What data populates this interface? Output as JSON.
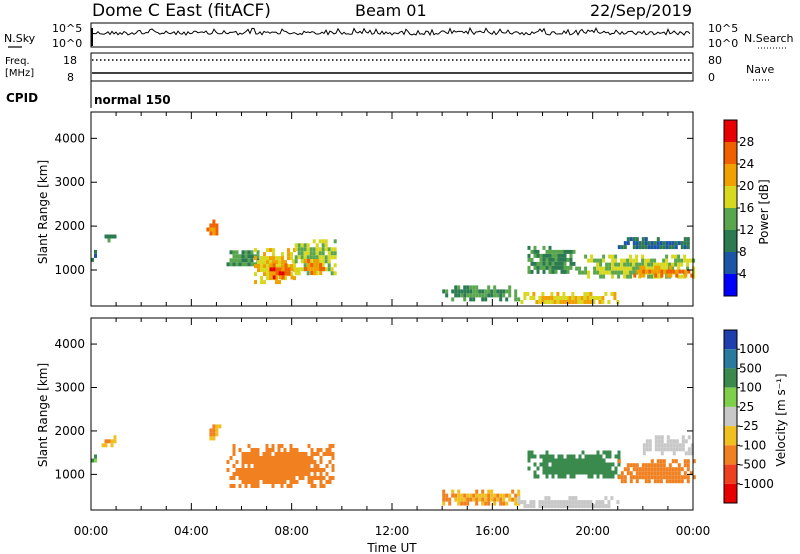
{
  "header": {
    "station": "Dome C East (fitACF)",
    "beam": "Beam 01",
    "date": "22/Sep/2019"
  },
  "strip_panels": {
    "nsky_label": "N.Sky",
    "nsearch_label": "N.Search",
    "noise_ticks": [
      "10^5",
      "10^0"
    ],
    "freq_label_line1": "Freq.",
    "freq_label_line2": "[MHz]",
    "freq_ticks": [
      "18",
      "8"
    ],
    "nave_label": "Nave",
    "nave_ticks": [
      "80",
      "0"
    ],
    "cpid_label": "CPID",
    "cpid_value": "normal 150"
  },
  "axes": {
    "ylabel": "Slant Range [km]",
    "xlabel": "Time UT",
    "y_ticks": [
      1000,
      2000,
      3000,
      4000
    ],
    "ylim": [
      180,
      4600
    ],
    "x_ticks": [
      "00:00",
      "04:00",
      "08:00",
      "12:00",
      "16:00",
      "20:00",
      "00:00"
    ],
    "xlim_hours": [
      0,
      24
    ]
  },
  "colorbars": {
    "power": {
      "label": "Power [dB]",
      "ticks": [
        "4",
        "8",
        "12",
        "16",
        "20",
        "24",
        "28"
      ],
      "colors": [
        "#0000ff",
        "#1a55a8",
        "#2c7a52",
        "#5aa64e",
        "#d8d820",
        "#f0a000",
        "#f06000",
        "#e80000"
      ]
    },
    "velocity": {
      "label": "Velocity [m s⁻¹]",
      "ticks": [
        "1000",
        "500",
        "100",
        "25",
        "-25",
        "-100",
        "-500",
        "-1000"
      ],
      "colors": [
        "#1f3fae",
        "#2a7aa0",
        "#3a8a4e",
        "#7ed04a",
        "#c8c8c8",
        "#f0c020",
        "#f08020",
        "#ee4020",
        "#e80000"
      ]
    }
  },
  "chart_data": [
    {
      "type": "heatmap",
      "title": "Power",
      "xlabel": "Time UT",
      "ylabel": "Slant Range [km]",
      "xlim": [
        0,
        24
      ],
      "ylim": [
        180,
        4600
      ],
      "colorbar_label": "Power [dB]",
      "regions": [
        {
          "t0": 0.0,
          "t1": 0.2,
          "r0": 1250,
          "r1": 1550,
          "value": 8
        },
        {
          "t0": 0.3,
          "t1": 1.0,
          "r0": 1700,
          "r1": 1900,
          "value": 12
        },
        {
          "t0": 4.6,
          "t1": 5.1,
          "r0": 1800,
          "r1": 2150,
          "value": 24
        },
        {
          "t0": 5.4,
          "t1": 6.6,
          "r0": 1100,
          "r1": 1450,
          "value": 12
        },
        {
          "t0": 6.5,
          "t1": 8.2,
          "r0": 750,
          "r1": 1500,
          "value": 20
        },
        {
          "t0": 7.0,
          "t1": 8.0,
          "r0": 850,
          "r1": 1150,
          "value": 26
        },
        {
          "t0": 8.0,
          "t1": 9.7,
          "r0": 900,
          "r1": 1700,
          "value": 16
        },
        {
          "t0": 8.5,
          "t1": 9.3,
          "r0": 950,
          "r1": 1250,
          "value": 24
        },
        {
          "t0": 14.0,
          "t1": 17.0,
          "r0": 350,
          "r1": 650,
          "value": 12
        },
        {
          "t0": 17.0,
          "t1": 21.0,
          "r0": 250,
          "r1": 500,
          "value": 20
        },
        {
          "t0": 17.4,
          "t1": 19.3,
          "r0": 950,
          "r1": 1550,
          "value": 12
        },
        {
          "t0": 19.3,
          "t1": 24.0,
          "r0": 850,
          "r1": 1350,
          "value": 16
        },
        {
          "t0": 21.5,
          "t1": 24.0,
          "r0": 900,
          "r1": 1100,
          "value": 24
        },
        {
          "t0": 21.0,
          "t1": 24.0,
          "r0": 1500,
          "r1": 1750,
          "value": 8
        }
      ]
    },
    {
      "type": "heatmap",
      "title": "Velocity",
      "xlabel": "Time UT",
      "ylabel": "Slant Range [km]",
      "xlim": [
        0,
        24
      ],
      "ylim": [
        180,
        4600
      ],
      "colorbar_label": "Velocity [m s⁻¹]",
      "regions": [
        {
          "t0": 0.0,
          "t1": 0.2,
          "r0": 1250,
          "r1": 1550,
          "value": 100
        },
        {
          "t0": 0.3,
          "t1": 1.0,
          "r0": 1700,
          "r1": 1900,
          "value": -100
        },
        {
          "t0": 4.6,
          "t1": 5.1,
          "r0": 1800,
          "r1": 2150,
          "value": -100
        },
        {
          "t0": 5.4,
          "t1": 9.7,
          "r0": 750,
          "r1": 1700,
          "value": -300
        },
        {
          "t0": 14.0,
          "t1": 17.0,
          "r0": 350,
          "r1": 650,
          "value": -100
        },
        {
          "t0": 17.0,
          "t1": 21.0,
          "r0": 250,
          "r1": 500,
          "value": 10
        },
        {
          "t0": 17.4,
          "t1": 21.0,
          "r0": 950,
          "r1": 1550,
          "value": 300
        },
        {
          "t0": 21.0,
          "t1": 24.0,
          "r0": 850,
          "r1": 1350,
          "value": -300
        },
        {
          "t0": 22.0,
          "t1": 24.0,
          "r0": 1500,
          "r1": 1900,
          "value": 0
        }
      ]
    }
  ]
}
